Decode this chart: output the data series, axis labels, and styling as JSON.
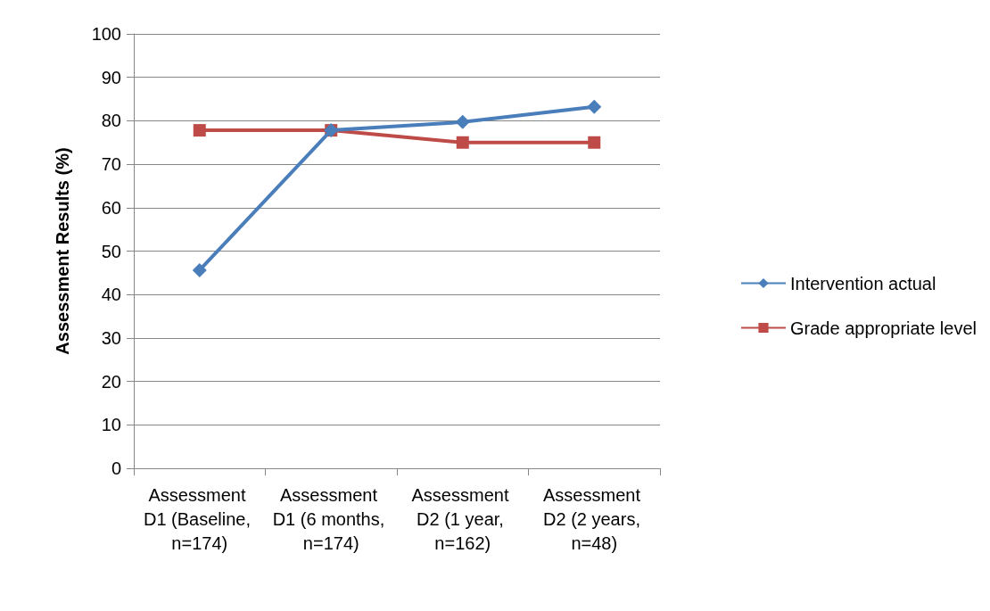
{
  "chart_data": {
    "type": "line",
    "ylabel": "Assessment Results (%)",
    "categories": [
      "Assessment D1 (Baseline, n=174)",
      "Assessment D1 (6 months, n=174)",
      "Assessment D2 (1 year, n=162)",
      "Assessment D2 (2 years, n=48)"
    ],
    "series": [
      {
        "name": "Intervention actual",
        "color": "#4a7ebb",
        "marker": "diamond",
        "values": [
          45.6,
          77.8,
          79.7,
          83.2
        ]
      },
      {
        "name": "Grade appropriate level",
        "color": "#be4b48",
        "marker": "square",
        "values": [
          77.8,
          77.8,
          75,
          75
        ]
      }
    ],
    "ylim": [
      0,
      100
    ],
    "yticks": [
      0,
      10,
      20,
      30,
      40,
      50,
      60,
      70,
      80,
      90,
      100
    ],
    "grid": "y",
    "legend": "right",
    "line_style": "solid"
  }
}
